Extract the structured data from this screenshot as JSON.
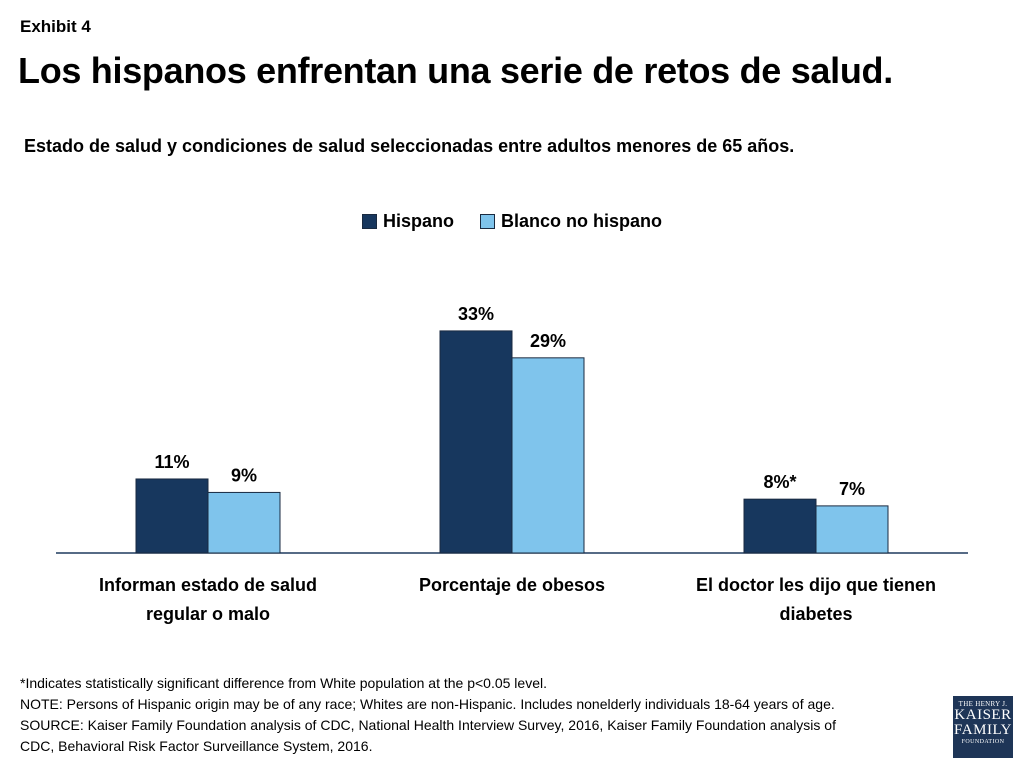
{
  "header": {
    "exhibit": "Exhibit 4",
    "title": "Los hispanos enfrentan una serie de retos de salud.",
    "subtitle": "Estado de salud y condiciones de salud seleccionadas entre adultos menores de 65 años."
  },
  "colors": {
    "hispano": "#17375e",
    "blanco": "#7fc4ec",
    "axis": "#1f3a5f"
  },
  "chart_data": {
    "type": "bar",
    "categories": [
      [
        "Informan estado de salud",
        "regular o malo"
      ],
      [
        "Porcentaje de obesos"
      ],
      [
        "El doctor les dijo que tienen",
        "diabetes"
      ]
    ],
    "series": [
      {
        "name": "Hispano",
        "values": [
          11,
          33,
          8
        ],
        "labels": [
          "11%",
          "33%",
          "8%*"
        ]
      },
      {
        "name": "Blanco no hispano",
        "values": [
          9,
          29,
          7
        ],
        "labels": [
          "9%",
          "29%",
          "7%"
        ]
      }
    ],
    "legend_position": "top-center",
    "grid": false
  },
  "footer": {
    "notes": [
      "*Indicates statistically significant difference from White population at the p<0.05 level.",
      "NOTE: Persons of Hispanic origin may be of any race; Whites are non-Hispanic. Includes nonelderly individuals 18-64 years of age.",
      "SOURCE: Kaiser Family Foundation analysis of CDC, National Health Interview Survey, 2016, Kaiser Family Foundation analysis of",
      "CDC, Behavioral Risk Factor Surveillance System, 2016."
    ],
    "logo": {
      "line1": "THE HENRY J.",
      "line2": "KAISER",
      "line3": "FAMILY",
      "line4": "FOUNDATION"
    }
  }
}
